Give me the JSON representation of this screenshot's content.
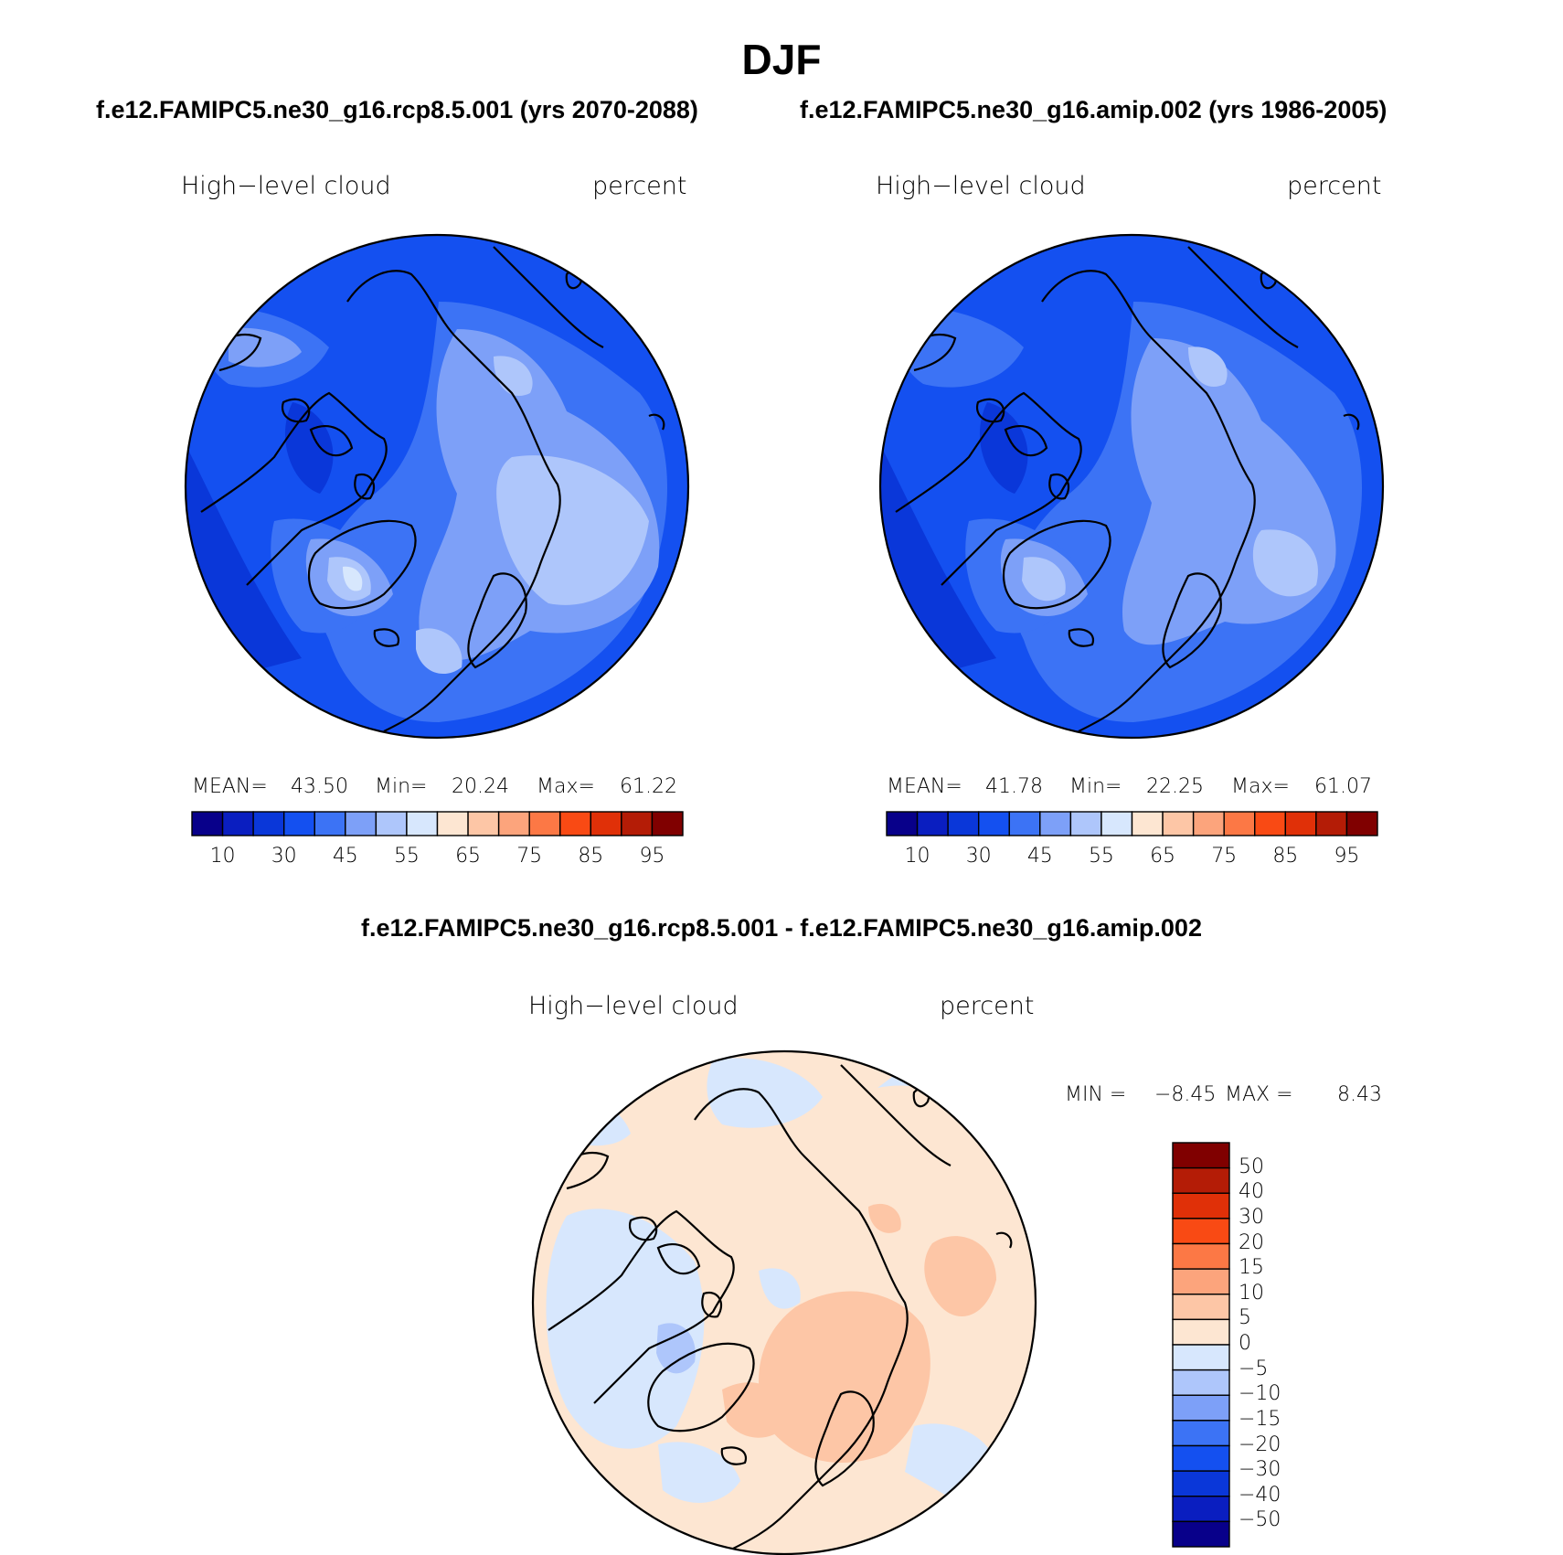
{
  "figure": {
    "title": "DJF",
    "subtitles": [
      "f.e12.FAMIPC5.ne30_g16.rcp8.5.001 (yrs 2070-2088)",
      "f.e12.FAMIPC5.ne30_g16.amip.002 (yrs 1986-2005)"
    ],
    "diff_title": "f.e12.FAMIPC5.ne30_g16.rcp8.5.001 - f.e12.FAMIPC5.ne30_g16.amip.002"
  },
  "panels": [
    {
      "variable": "High−level cloud",
      "units": "percent",
      "stats": {
        "mean_label": "MEAN=",
        "mean": "43.50",
        "min_label": "Min=",
        "min": "20.24",
        "max_label": "Max=",
        "max": "61.22"
      }
    },
    {
      "variable": "High−level cloud",
      "units": "percent",
      "stats": {
        "mean_label": "MEAN=",
        "mean": "41.78",
        "min_label": "Min=",
        "min": "22.25",
        "max_label": "Max=",
        "max": "61.07"
      }
    },
    {
      "variable": "High−level cloud",
      "units": "percent",
      "stats": {
        "min_label": "MIN =",
        "min": "−8.45",
        "max_label": "MAX =",
        "max": "8.43"
      }
    }
  ],
  "colorbar_main": {
    "colors": [
      "#08008a",
      "#0a1ec0",
      "#0a37d9",
      "#1450f0",
      "#3c73f5",
      "#7da0f8",
      "#aec6fb",
      "#d7e7fd",
      "#fde6d2",
      "#fdc6a6",
      "#fca47c",
      "#fc7845",
      "#f94a14",
      "#e03008",
      "#b41c06",
      "#800000"
    ],
    "tick_labels": [
      "10",
      "30",
      "45",
      "55",
      "65",
      "75",
      "85",
      "95"
    ]
  },
  "colorbar_diff": {
    "colors": [
      "#800000",
      "#b41c06",
      "#e03008",
      "#f94a14",
      "#fc7845",
      "#fca47c",
      "#fdc6a6",
      "#fde6d2",
      "#d7e7fd",
      "#aec6fb",
      "#7da0f8",
      "#3c73f5",
      "#1450f0",
      "#0a37d9",
      "#0a1ec0",
      "#08008a"
    ],
    "tick_labels": [
      "50",
      "40",
      "30",
      "20",
      "15",
      "10",
      "5",
      "0",
      "−5",
      "−10",
      "−15",
      "−20",
      "−30",
      "−40",
      "−50"
    ]
  }
}
